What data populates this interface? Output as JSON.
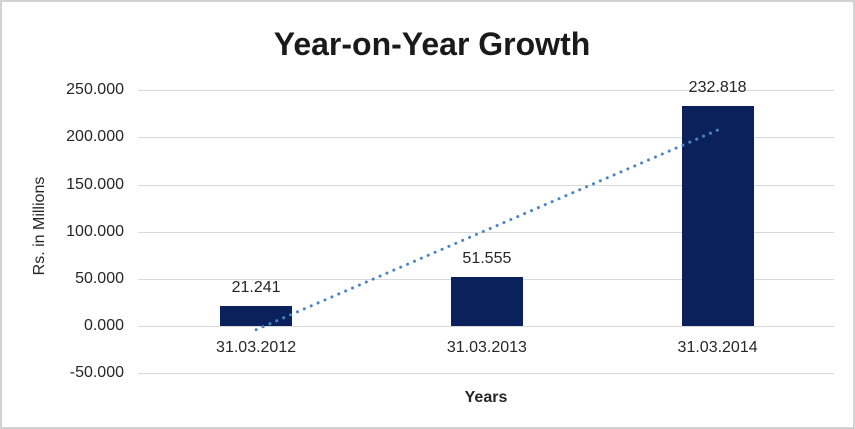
{
  "frame": {
    "background": "#ffffff",
    "border_color": "#d2d2d2"
  },
  "chart_data": {
    "type": "bar",
    "title": "Year-on-Year Growth",
    "xlabel": "Years",
    "ylabel": "Rs. in Millions",
    "categories": [
      "31.03.2012",
      "31.03.2013",
      "31.03.2014"
    ],
    "values": [
      21.241,
      51.555,
      232.818
    ],
    "value_labels": [
      "21.241",
      "51.555",
      "232.818"
    ],
    "y_ticks": [
      "250.000",
      "200.000",
      "150.000",
      "100.000",
      "50.000",
      "0.000",
      "-50.000"
    ],
    "y_tick_values": [
      250,
      200,
      150,
      100,
      50,
      0,
      -50
    ],
    "ylim": [
      -50,
      250
    ],
    "grid": true,
    "legend": "none",
    "bar_color": "#0a215c",
    "gridline_color": "#d9d9d9",
    "trendline": {
      "type": "linear",
      "style": "dotted",
      "color": "#4a86c5"
    },
    "text_color": "#262626",
    "title_color": "#1a1a1a"
  }
}
